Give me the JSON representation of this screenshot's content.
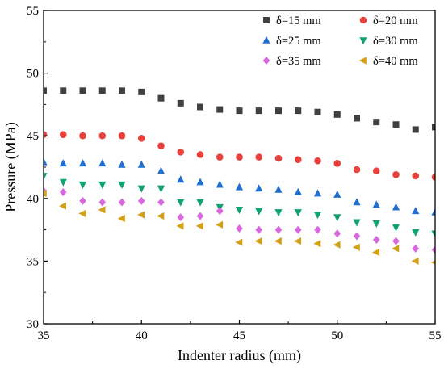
{
  "chart_data": {
    "type": "scatter",
    "xlabel": "Indenter radius (mm)",
    "ylabel": "Pressure (MPa)",
    "xlim": [
      35,
      55
    ],
    "ylim": [
      30,
      55
    ],
    "xticks": [
      35,
      40,
      45,
      50,
      55
    ],
    "yticks": [
      30,
      35,
      40,
      45,
      50,
      55
    ],
    "x": [
      35,
      36,
      37,
      38,
      39,
      40,
      41,
      42,
      43,
      44,
      45,
      46,
      47,
      48,
      49,
      50,
      51,
      52,
      53,
      54,
      55
    ],
    "grid": false,
    "legend_position": "top-right",
    "series": [
      {
        "name": "δ=15 mm",
        "marker": "square",
        "color": "#404040",
        "values": [
          48.6,
          48.6,
          48.6,
          48.6,
          48.6,
          48.5,
          48.0,
          47.6,
          47.3,
          47.1,
          47.0,
          47.0,
          47.0,
          47.0,
          46.9,
          46.7,
          46.4,
          46.1,
          45.9,
          45.5,
          45.7
        ]
      },
      {
        "name": "δ=20 mm",
        "marker": "circle",
        "color": "#e8403a",
        "values": [
          45.1,
          45.1,
          45.0,
          45.0,
          45.0,
          44.8,
          44.2,
          43.7,
          43.5,
          43.3,
          43.3,
          43.3,
          43.2,
          43.1,
          43.0,
          42.8,
          42.3,
          42.2,
          41.9,
          41.8,
          41.7
        ]
      },
      {
        "name": "δ=25 mm",
        "marker": "triangle-up",
        "color": "#1f6fd1",
        "values": [
          42.9,
          42.8,
          42.8,
          42.8,
          42.7,
          42.7,
          42.2,
          41.5,
          41.3,
          41.1,
          40.9,
          40.8,
          40.7,
          40.5,
          40.4,
          40.3,
          39.7,
          39.5,
          39.3,
          39.0,
          38.9
        ]
      },
      {
        "name": "δ=30 mm",
        "marker": "triangle-down",
        "color": "#0fa36f",
        "values": [
          41.8,
          41.3,
          41.1,
          41.1,
          41.1,
          40.8,
          40.8,
          39.7,
          39.7,
          39.3,
          39.1,
          39.0,
          38.9,
          38.9,
          38.7,
          38.5,
          38.1,
          38.0,
          37.7,
          37.3,
          37.2
        ]
      },
      {
        "name": "δ=35 mm",
        "marker": "diamond",
        "color": "#d968e0",
        "values": [
          40.6,
          40.5,
          39.8,
          39.7,
          39.7,
          39.8,
          39.7,
          38.5,
          38.6,
          39.0,
          37.6,
          37.5,
          37.5,
          37.5,
          37.5,
          37.2,
          37.0,
          36.7,
          36.6,
          36.0,
          35.9
        ]
      },
      {
        "name": "δ=40 mm",
        "marker": "triangle-left",
        "color": "#d4a017",
        "values": [
          40.4,
          39.4,
          38.8,
          39.1,
          38.4,
          38.7,
          38.6,
          37.8,
          37.8,
          37.9,
          36.5,
          36.6,
          36.6,
          36.6,
          36.4,
          36.3,
          36.1,
          35.7,
          36.0,
          35.0,
          34.9
        ]
      }
    ]
  }
}
